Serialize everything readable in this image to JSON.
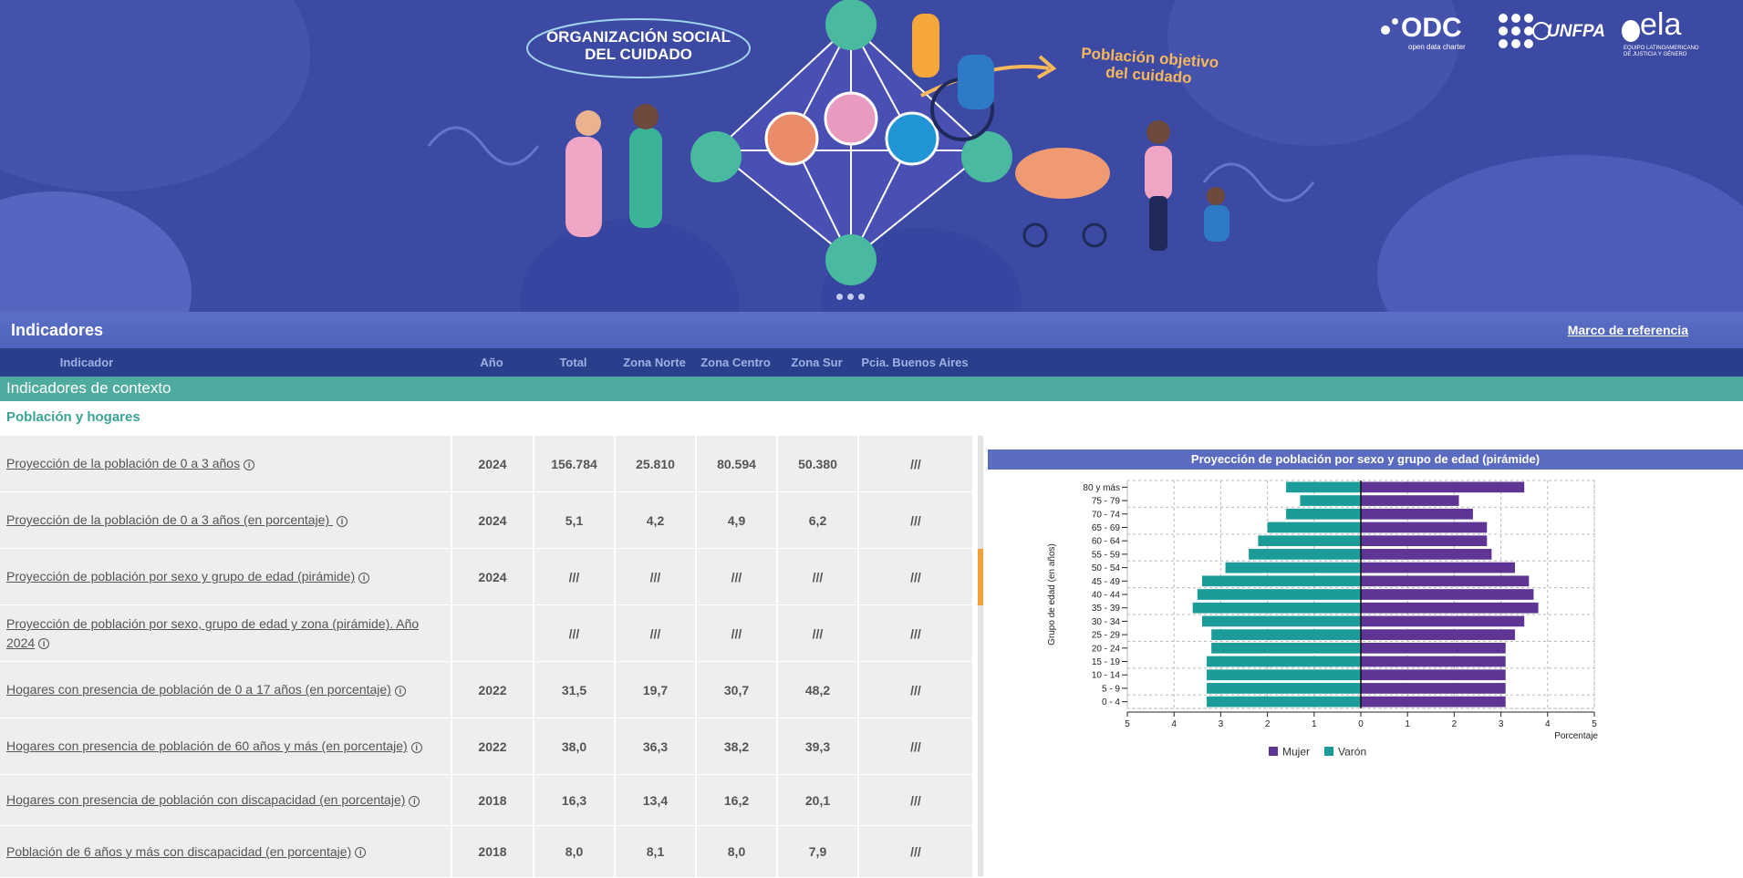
{
  "banner": {
    "org_title_line1": "ORGANIZACIÓN SOCIAL",
    "org_title_line2": "DEL CUIDADO",
    "pop_title_line1": "Población objetivo",
    "pop_title_line2": "del cuidado",
    "logos": {
      "odc": "ODC",
      "odc_sub": "open data charter",
      "unfpa": "UNFPA",
      "ela": "ela",
      "ela_sub1": "EQUIPO LATINOAMERICANO",
      "ela_sub2": "DE JUSTICIA Y GÉNERO"
    }
  },
  "header": {
    "title": "Indicadores",
    "reference_link": "Marco de referencia"
  },
  "columns": [
    "Indicador",
    "Año",
    "Total",
    "Zona Norte",
    "Zona Centro",
    "Zona Sur",
    "Pcia. Buenos Aires"
  ],
  "section": {
    "title": "Indicadores de contexto",
    "subsection": "Población y hogares"
  },
  "rows": [
    {
      "label": "Proyección de la población de 0 a 3 años",
      "year": "2024",
      "total": "156.784",
      "norte": "25.810",
      "centro": "80.594",
      "sur": "50.380",
      "pba": "///"
    },
    {
      "label": "Proyección de la población de 0 a 3 años (en porcentaje) ",
      "year": "2024",
      "total": "5,1",
      "norte": "4,2",
      "centro": "4,9",
      "sur": "6,2",
      "pba": "///"
    },
    {
      "label": "Proyección de población por sexo y grupo de edad (pirámide)",
      "year": "2024",
      "total": "///",
      "norte": "///",
      "centro": "///",
      "sur": "///",
      "pba": "///"
    },
    {
      "label": "Proyección de población por sexo, grupo de edad y zona (pirámide). Año 2024",
      "year": "",
      "total": "///",
      "norte": "///",
      "centro": "///",
      "sur": "///",
      "pba": "///"
    },
    {
      "label": "Hogares con presencia de población de 0 a 17 años (en porcentaje)",
      "year": "2022",
      "total": "31,5",
      "norte": "19,7",
      "centro": "30,7",
      "sur": "48,2",
      "pba": "///"
    },
    {
      "label": "Hogares con presencia de población de 60 años y más (en porcentaje)",
      "year": "2022",
      "total": "38,0",
      "norte": "36,3",
      "centro": "38,2",
      "sur": "39,3",
      "pba": "///"
    },
    {
      "label": "Hogares con presencia de población con discapacidad (en porcentaje)",
      "year": "2018",
      "total": "16,3",
      "norte": "13,4",
      "centro": "16,2",
      "sur": "20,1",
      "pba": "///"
    },
    {
      "label": "Población de 6 años y más con discapacidad (en porcentaje)",
      "year": "2018",
      "total": "8,0",
      "norte": "8,1",
      "centro": "8,0",
      "sur": "7,9",
      "pba": "///"
    }
  ],
  "info_icon_glyph": "i",
  "chart_data": {
    "type": "bar",
    "orientation": "horizontal-pyramid",
    "title": "Proyección de población por sexo y grupo de edad (pirámide)",
    "xlabel": "Porcentaje",
    "ylabel": "Grupo de edad (en años)",
    "xlim": [
      -5,
      5
    ],
    "x_ticks": [
      "5",
      "4",
      "3",
      "2",
      "1",
      "0",
      "1",
      "2",
      "3",
      "4",
      "5"
    ],
    "grid": true,
    "legend_position": "bottom",
    "categories": [
      "0 - 4",
      "5 - 9",
      "10 - 14",
      "15 - 19",
      "20 - 24",
      "25 - 29",
      "30 - 34",
      "35 - 39",
      "40 - 44",
      "45 - 49",
      "50 - 54",
      "55 - 59",
      "60 - 64",
      "65 - 69",
      "70 - 74",
      "75 - 79",
      "80 y más"
    ],
    "series": [
      {
        "name": "Mujer",
        "color": "#5e3494",
        "values": [
          3.1,
          3.1,
          3.1,
          3.1,
          3.1,
          3.3,
          3.5,
          3.8,
          3.7,
          3.6,
          3.3,
          2.8,
          2.7,
          2.7,
          2.4,
          2.1,
          3.5
        ]
      },
      {
        "name": "Varón",
        "color": "#1c9c98",
        "values": [
          3.3,
          3.3,
          3.3,
          3.3,
          3.2,
          3.2,
          3.4,
          3.6,
          3.5,
          3.4,
          2.9,
          2.4,
          2.2,
          2.0,
          1.6,
          1.3,
          1.6
        ]
      }
    ]
  }
}
